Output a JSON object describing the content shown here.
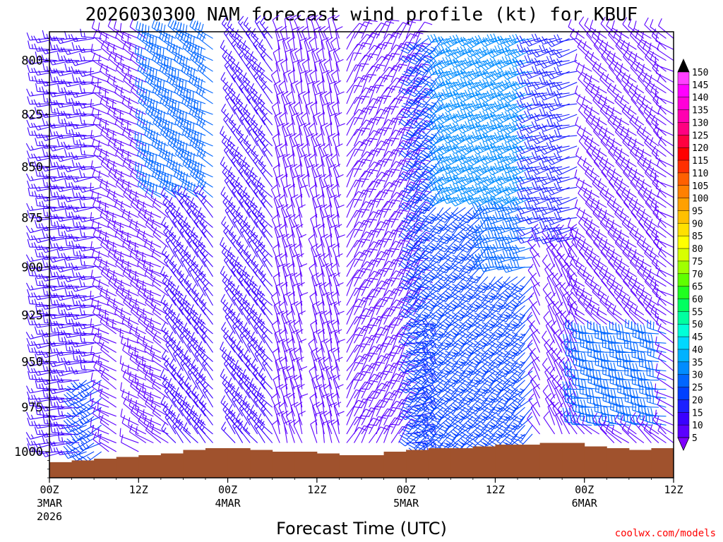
{
  "chart_data": {
    "type": "wind-barb time-height profile",
    "title": "2026030300 NAM forecast wind profile (kt) for KBUF",
    "xlabel": "Forecast Time (UTC)",
    "ylabel": "",
    "y_axis": {
      "scale": "log-pressure",
      "range": [
        1015,
        787
      ],
      "ticks": [
        "800",
        "825",
        "850",
        "875",
        "900",
        "925",
        "950",
        "975",
        "1000"
      ],
      "tick_values": [
        800,
        825,
        850,
        875,
        900,
        925,
        950,
        975,
        1000
      ]
    },
    "x_axis": {
      "range_hours": [
        0,
        84
      ],
      "ticks": [
        {
          "hour": 0,
          "label": "00Z",
          "date": "3MAR",
          "year": "2026"
        },
        {
          "hour": 12,
          "label": "12Z",
          "date": "",
          "year": ""
        },
        {
          "hour": 24,
          "label": "00Z",
          "date": "4MAR",
          "year": ""
        },
        {
          "hour": 36,
          "label": "12Z",
          "date": "",
          "year": ""
        },
        {
          "hour": 48,
          "label": "00Z",
          "date": "5MAR",
          "year": ""
        },
        {
          "hour": 60,
          "label": "12Z",
          "date": "",
          "year": ""
        },
        {
          "hour": 72,
          "label": "00Z",
          "date": "6MAR",
          "year": ""
        },
        {
          "hour": 84,
          "label": "12Z",
          "date": "",
          "year": ""
        }
      ]
    },
    "colorbar": {
      "unit": "kt",
      "levels": [
        5,
        10,
        15,
        20,
        25,
        30,
        35,
        40,
        45,
        50,
        55,
        60,
        65,
        70,
        75,
        80,
        85,
        90,
        95,
        100,
        105,
        110,
        115,
        120,
        125,
        130,
        135,
        140,
        145,
        150
      ],
      "colors": [
        "#7f00ff",
        "#5b00ff",
        "#3a00ff",
        "#1c20ff",
        "#0040ff",
        "#0066ff",
        "#008cff",
        "#00b2ff",
        "#00d8ff",
        "#00ffd8",
        "#00ffa0",
        "#00ff60",
        "#20ff20",
        "#60ff00",
        "#a0ff00",
        "#d8ff00",
        "#ffff00",
        "#ffe000",
        "#ffc000",
        "#ffa000",
        "#ff8000",
        "#ff6000",
        "#ff3000",
        "#ff0000",
        "#ff0040",
        "#ff0080",
        "#ff00b0",
        "#ff00d8",
        "#ff00ff",
        "#ff40ff"
      ],
      "min_arrow_color": "#7f00ff",
      "max_arrow_color": "#000000"
    },
    "surface_pressure": {
      "hours": [
        0,
        3,
        6,
        9,
        12,
        15,
        18,
        21,
        24,
        27,
        30,
        33,
        36,
        39,
        42,
        45,
        48,
        51,
        54,
        57,
        60,
        63,
        66,
        69,
        72,
        75,
        78,
        81,
        84
      ],
      "values": [
        1006,
        1005,
        1004,
        1003,
        1002,
        1001,
        999,
        998,
        998,
        999,
        1000,
        1000,
        1001,
        1002,
        1002,
        1000,
        999,
        998,
        998,
        997,
        996,
        996,
        995,
        995,
        997,
        998,
        999,
        998,
        998
      ],
      "fill": "#a0522d"
    },
    "wind_gaps": [
      {
        "hour": 10.5,
        "from_p": 940,
        "to_p": 1000
      },
      {
        "hour": 23.5,
        "from_p": 790,
        "to_p": 1000
      },
      {
        "hour": 35,
        "from_p": 870,
        "to_p": 1000
      },
      {
        "hour": 67,
        "from_p": 880,
        "to_p": 990
      },
      {
        "hour": 72,
        "from_p": 800,
        "to_p": 880
      }
    ],
    "wind_regimes": [
      {
        "h0": 0,
        "h1": 8,
        "p0": 787,
        "p1": 1015,
        "dir": 265,
        "spd": 15
      },
      {
        "h0": 5,
        "h1": 10,
        "p0": 960,
        "p1": 1015,
        "dir": 240,
        "spd": 25
      },
      {
        "h0": 8,
        "h1": 17,
        "p0": 787,
        "p1": 1015,
        "dir": 300,
        "spd": 12
      },
      {
        "h0": 14,
        "h1": 23,
        "p0": 787,
        "p1": 870,
        "dir": 300,
        "spd": 30
      },
      {
        "h0": 17,
        "h1": 23,
        "p0": 870,
        "p1": 1015,
        "dir": 320,
        "spd": 15
      },
      {
        "h0": 24,
        "h1": 31,
        "p0": 787,
        "p1": 1015,
        "dir": 320,
        "spd": 15
      },
      {
        "h0": 31,
        "h1": 40,
        "p0": 787,
        "p1": 1015,
        "dir": 345,
        "spd": 10
      },
      {
        "h0": 40,
        "h1": 50,
        "p0": 787,
        "p1": 1015,
        "dir": 30,
        "spd": 10
      },
      {
        "h0": 48,
        "h1": 52,
        "p0": 930,
        "p1": 1015,
        "dir": 80,
        "spd": 20
      },
      {
        "h0": 50,
        "h1": 66,
        "p0": 787,
        "p1": 1015,
        "dir": 225,
        "spd": 25
      },
      {
        "h0": 54,
        "h1": 66,
        "p0": 787,
        "p1": 870,
        "dir": 250,
        "spd": 35
      },
      {
        "h0": 60,
        "h1": 66,
        "p0": 870,
        "p1": 905,
        "dir": 260,
        "spd": 30
      },
      {
        "h0": 66,
        "h1": 72,
        "p0": 787,
        "p1": 890,
        "dir": 255,
        "spd": 20
      },
      {
        "h0": 66,
        "h1": 72,
        "p0": 890,
        "p1": 1015,
        "dir": 330,
        "spd": 10
      },
      {
        "h0": 72,
        "h1": 84,
        "p0": 787,
        "p1": 1015,
        "dir": 310,
        "spd": 12
      },
      {
        "h0": 72,
        "h1": 84,
        "p0": 935,
        "p1": 990,
        "dir": 280,
        "spd": 30
      }
    ]
  },
  "credit": "coolwx.com/models",
  "colors": {
    "ground": "#a0522d",
    "axis": "#000000",
    "credit": "#ff0000"
  }
}
